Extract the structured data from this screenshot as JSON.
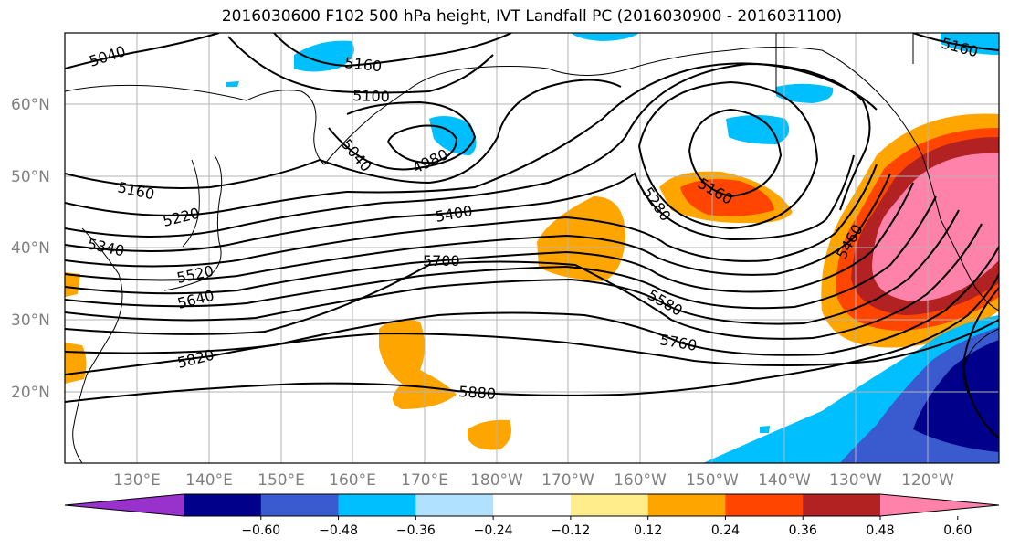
{
  "title": "2016030600 F102 500 hPa height, IVT Landfall PC (2016030900 - 2016031100)",
  "map": {
    "lat_labels": [
      "60°N",
      "50°N",
      "40°N",
      "30°N",
      "20°N"
    ],
    "lon_labels": [
      "130°E",
      "140°E",
      "150°E",
      "160°E",
      "170°E",
      "180°W",
      "170°W",
      "160°W",
      "150°W",
      "140°W",
      "130°W",
      "120°W"
    ],
    "contour_labels": [
      "5040",
      "5160",
      "5100",
      "5040",
      "4980",
      "5160",
      "5220",
      "5340",
      "5520",
      "5640",
      "5400",
      "5700",
      "5160",
      "5280",
      "5580",
      "5760",
      "5820",
      "5880",
      "5460",
      "5160"
    ]
  },
  "colorbar": {
    "ticks": [
      "−0.60",
      "−0.48",
      "−0.36",
      "−0.24",
      "−0.12",
      "0.12",
      "0.24",
      "0.36",
      "0.48",
      "0.60"
    ],
    "colors": [
      "#9932CC",
      "#00008B",
      "#3A5BCF",
      "#00BFFF",
      "#B0E2FF",
      "#FFFFFF",
      "#FFEC8B",
      "#FFA500",
      "#FF4500",
      "#B22222",
      "#FF82AB"
    ]
  }
}
